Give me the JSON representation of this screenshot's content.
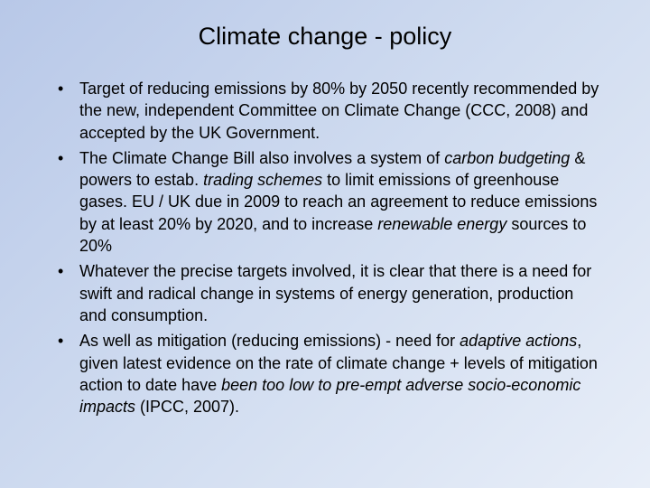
{
  "slide": {
    "title": "Climate change - policy",
    "background_gradient": [
      "#b8c8e8",
      "#d0dcf0",
      "#e8eef8"
    ],
    "title_fontsize": 27,
    "body_fontsize": 18,
    "text_color": "#000000",
    "bullets": [
      {
        "runs": [
          {
            "text": "Target of reducing emissions by 80% by 2050 recently recommended by the new, independent Committee on Climate Change (CCC, 2008) and accepted by the UK Government.",
            "italic": false
          }
        ]
      },
      {
        "runs": [
          {
            "text": "The Climate Change Bill also involves a system of ",
            "italic": false
          },
          {
            "text": "carbon budgeting",
            "italic": true
          },
          {
            "text": " & powers to estab. ",
            "italic": false
          },
          {
            "text": "trading schemes",
            "italic": true
          },
          {
            "text": " to limit emissions of greenhouse gases.  EU / UK due in 2009 to reach an agreement to reduce emissions by at least 20% by 2020, and to increase ",
            "italic": false
          },
          {
            "text": "renewable energy",
            "italic": true
          },
          {
            "text": " sources to 20%",
            "italic": false
          }
        ]
      },
      {
        "runs": [
          {
            "text": "Whatever the precise targets involved, it is clear that there is a need for swift and radical change in systems of energy generation, production and consumption.",
            "italic": false
          }
        ]
      },
      {
        "runs": [
          {
            "text": "As well as mitigation (reducing emissions) - need for ",
            "italic": false
          },
          {
            "text": "adaptive actions",
            "italic": true
          },
          {
            "text": ", given latest evidence on the rate of climate change + levels of mitigation action to date have ",
            "italic": false
          },
          {
            "text": "been too low to pre-empt adverse socio-economic impacts",
            "italic": true
          },
          {
            "text": " (IPCC, 2007).",
            "italic": false
          }
        ]
      }
    ]
  }
}
